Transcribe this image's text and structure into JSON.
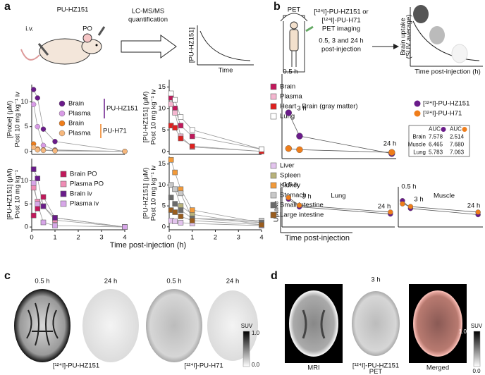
{
  "figure": {
    "panel_labels": [
      "a",
      "b",
      "c",
      "d"
    ],
    "a_schematic": {
      "compound": "PU-HZ151",
      "iv": "i.v.",
      "po": "PO",
      "method": [
        "LC-MS/MS",
        "quantification"
      ],
      "mini_ylabel": "[PU-HZ151]",
      "mini_xlabel": "Time"
    },
    "a_xlabel": "Time post-injection (h)",
    "b_schematic": {
      "scanner": "PET",
      "probes": [
        "[¹²⁴I]-PU-HZ151 or",
        "[¹²⁴I]-PU-H71",
        "PET imaging"
      ],
      "times": [
        "0.5, 3 and 24 h",
        "post-injection"
      ],
      "mini_ylabel": [
        "Brain uptake",
        "(SUV average)"
      ],
      "mini_xlabel": "Time post-injection (h)"
    },
    "b_legend": [
      {
        "name": "[¹²⁴I]-PU-HZ151",
        "color": "#6a1b8a"
      },
      {
        "name": "[¹²⁴I]-PU-H71",
        "color": "#ef7d1a"
      }
    ],
    "b_auc_table": {
      "header": [
        "AUC",
        "AUC"
      ],
      "rows": [
        [
          "Brain",
          "7.578",
          "2.514"
        ],
        [
          "Muscle",
          "6.465",
          "7.680"
        ],
        [
          "Lung",
          "5.783",
          "7.063"
        ]
      ]
    },
    "b_ylabel": "Uptake",
    "b_xlabel": "Time post-injection",
    "c": {
      "times": [
        "0.5 h",
        "24 h",
        "0.5 h",
        "24 h"
      ],
      "probes": [
        "[¹²⁴I]-PU-HZ151",
        "[¹²⁴I]-PU-H71"
      ],
      "colorbar_title": "SUV",
      "colorbar_max": "1.0",
      "colorbar_min": "0.0"
    },
    "d": {
      "time": "3 h",
      "mri": "MRI",
      "pet": [
        "[¹²⁴I]-PU-HZ151",
        "PET"
      ],
      "merged": "Merged",
      "colorbar_title": "SUV",
      "colorbar_max": "1.0",
      "colorbar_min": "0.0"
    }
  },
  "chart_data": [
    {
      "type": "line",
      "ylabel": [
        "[Probe] (μM)",
        "Post 10 mg kg⁻¹ iv"
      ],
      "marker": "circle",
      "line_color": "#999999",
      "x": [
        0.08,
        0.25,
        0.5,
        1,
        4
      ],
      "xlim": [
        0,
        4
      ],
      "ylim": [
        -0.6,
        13.5
      ],
      "yticks": [
        0,
        5,
        10
      ],
      "series": [
        {
          "name": "Brain",
          "color": "#6a1b8a",
          "values": [
            12.5,
            10.8,
            4.5,
            2,
            0
          ]
        },
        {
          "name": "Plasma",
          "color": "#d89be6",
          "values": [
            9.5,
            5,
            1.2,
            0.3,
            0
          ]
        },
        {
          "name": "Brain",
          "color": "#ef7d1a",
          "values": [
            1.5,
            0.5,
            0.3,
            0.2,
            0
          ]
        },
        {
          "name": "Plasma",
          "color": "#f6b77c",
          "values": [
            0.8,
            0.3,
            0.2,
            0.1,
            0
          ]
        }
      ],
      "groups": [
        {
          "name": "PU-HZ151",
          "color": "#6a1b8a"
        },
        {
          "name": "PU-H71",
          "color": "#ef7d1a"
        }
      ]
    },
    {
      "type": "line",
      "ylabel": [
        "[PU-HZ151] (μM)",
        "Post 10 mg kg⁻¹ iv"
      ],
      "marker": "square",
      "line_color": "#999999",
      "x": [
        0.08,
        0.25,
        0.5,
        1,
        4
      ],
      "xlim": [
        0,
        4
      ],
      "ylim": [
        -0.7,
        16.7
      ],
      "yticks": [
        0,
        5,
        10,
        15
      ],
      "series": [
        {
          "name": "Brain",
          "color": "#c2185b",
          "values": [
            12.5,
            10,
            6,
            3.5,
            0.5
          ]
        },
        {
          "name": "Plasma",
          "color": "#f4b6cf",
          "values": [
            11,
            9,
            3.5,
            1,
            0
          ]
        },
        {
          "name": "Heart",
          "color": "#e0201f",
          "values": [
            6,
            5.5,
            3,
            1.2,
            0
          ]
        },
        {
          "name": "Lung",
          "color": "#ffffff",
          "values": [
            13.5,
            12,
            8,
            5,
            0.5
          ]
        }
      ]
    },
    {
      "type": "line",
      "ylabel": [
        "[PU-HZ151] (μM)",
        "Post 10 mg kg⁻¹"
      ],
      "marker": "square",
      "line_color": "#999999",
      "x": [
        0.08,
        0.25,
        0.5,
        1,
        4
      ],
      "xlim": [
        0,
        4
      ],
      "ylim": [
        -0.6,
        14.8
      ],
      "yticks": [
        0,
        5,
        10
      ],
      "xticks": [
        0,
        1,
        2,
        3,
        4
      ],
      "series": [
        {
          "name": "Brain PO",
          "color": "#c2185b",
          "values": [
            2.5,
            4,
            6.5,
            2,
            0
          ]
        },
        {
          "name": "Plasma PO",
          "color": "#f08cb5",
          "values": [
            8.5,
            5.5,
            4.5,
            1.5,
            0
          ]
        },
        {
          "name": "Brain iv",
          "color": "#6a1b8a",
          "values": [
            12.5,
            10.5,
            4.5,
            2,
            0
          ]
        },
        {
          "name": "Plasma iv",
          "color": "#d7a6e8",
          "values": [
            9.5,
            5,
            1,
            0.3,
            0
          ]
        }
      ]
    },
    {
      "type": "line",
      "ylabel": [
        "[PU-HZ151] (μM)",
        "Post 10 mg kg⁻¹ iv"
      ],
      "marker": "square",
      "line_color": "#999999",
      "x": [
        0.08,
        0.25,
        0.5,
        1,
        4
      ],
      "xlim": [
        0,
        4
      ],
      "ylim": [
        -0.7,
        16.8
      ],
      "yticks": [
        0,
        5,
        10,
        15
      ],
      "xticks": [
        0,
        1,
        2,
        3,
        4
      ],
      "series": [
        {
          "name": "Liver",
          "color": "#e3c4ee",
          "values": [
            1.5,
            1.3,
            1,
            0.8,
            0.3
          ]
        },
        {
          "name": "Spleen",
          "color": "#b8b27a",
          "values": [
            10,
            9,
            5,
            3,
            0.5
          ]
        },
        {
          "name": "Kidney",
          "color": "#f29a3a",
          "values": [
            16,
            13,
            9,
            4,
            1
          ]
        },
        {
          "name": "Stomach",
          "color": "#c8c8c8",
          "values": [
            10,
            9,
            8,
            2,
            1.5
          ]
        },
        {
          "name": "Small intestine",
          "color": "#6b6b6b",
          "values": [
            7,
            5.5,
            4,
            2,
            1
          ]
        },
        {
          "name": "Large intestine",
          "color": "#9a5d1e",
          "values": [
            4,
            3.5,
            2.5,
            1.5,
            0.5
          ]
        }
      ]
    },
    {
      "type": "line",
      "title": "Brain (gray matter)",
      "marker": "circle",
      "line_color": "#555555",
      "x": [
        0.5,
        3,
        24
      ],
      "xlim": [
        -1,
        25
      ],
      "ylim": [
        -0.08,
        2.1
      ],
      "point_labels": [
        "0.5 h",
        "3 h",
        "24 h"
      ],
      "series": [
        {
          "color": "#6a1b8a",
          "values": [
            1.1,
            0.5,
            0.05
          ]
        },
        {
          "color": "#ef7d1a",
          "values": [
            0.18,
            0.15,
            0.08
          ]
        }
      ]
    },
    {
      "type": "line",
      "title": "Lung",
      "marker": "circle",
      "line_color": "#555555",
      "x": [
        0.5,
        3,
        24
      ],
      "xlim": [
        -1,
        25
      ],
      "ylim": [
        -0.3,
        1.0
      ],
      "point_labels": [
        "0.5 h",
        "3 h",
        "24 h"
      ],
      "series": [
        {
          "color": "#6a1b8a",
          "values": [
            0.6,
            0.35,
            0.12
          ]
        },
        {
          "color": "#ef7d1a",
          "values": [
            0.65,
            0.4,
            0.18
          ]
        }
      ]
    },
    {
      "type": "line",
      "title": "Muscle",
      "marker": "circle",
      "line_color": "#555555",
      "x": [
        0.5,
        3,
        24
      ],
      "xlim": [
        -0.8,
        25.5
      ],
      "ylim": [
        -0.3,
        1.0
      ],
      "point_labels": [
        "0.5 h",
        "3 h",
        "24 h"
      ],
      "series": [
        {
          "color": "#6a1b8a",
          "values": [
            0.55,
            0.3,
            0.1
          ]
        },
        {
          "color": "#ef7d1a",
          "values": [
            0.45,
            0.36,
            0.18
          ]
        }
      ]
    }
  ]
}
